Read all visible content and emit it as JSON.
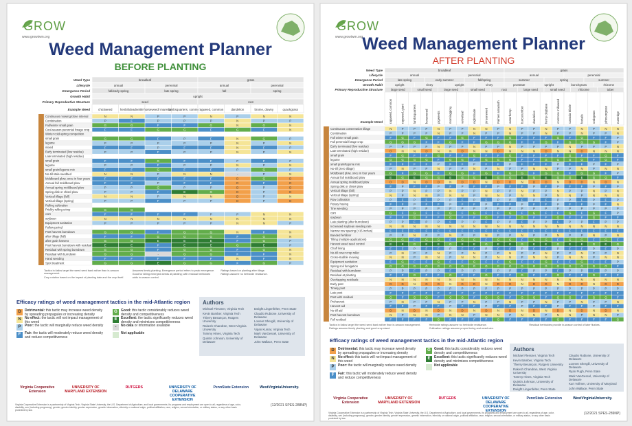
{
  "posters": [
    {
      "logo": "GROW",
      "website": "www.growiwm.org",
      "title": "Weed Management Planner",
      "subtitle": "BEFORE PLANTING",
      "subtitle_color": "#3f8f3a",
      "grid": {
        "header": [
          {
            "label": "Weed Type",
            "groups": [
              "broadleaf",
              "grass"
            ]
          },
          {
            "label": "Lifecycle",
            "groups": [
              "annual",
              "perennial",
              "annual",
              "perennial"
            ]
          },
          {
            "label": "Emergence Period",
            "groups": [
              "fall/early spring",
              "late spring",
              "fall",
              "spring"
            ]
          },
          {
            "label": "Growth Habit",
            "groups": [
              "upright"
            ]
          },
          {
            "label": "Primary Reproductive Structure",
            "groups": [
              "seed",
              "root"
            ]
          }
        ],
        "example_label": "Example Weed",
        "columns": [
          "chickweed",
          "henbit/deadnettle",
          "horseweed/ marestail",
          "lambsquarters, common",
          "ragweed, common",
          "dandelion",
          "brome, downy",
          "quackgrass"
        ],
        "row_labels": [
          "Continuous mowing/close interval",
          "Combination",
          "Fall/winter small grain",
          "Cool-season perennial forage crop",
          "Winter cold-spring competition",
          "small grain",
          "legume",
          "mixed",
          "Early terminated (low residue)",
          "Late terminated (high residue)",
          "small grain",
          "legume",
          "small grain/legume mix",
          "No-till stale seedbed",
          "Moldboard plow, once in four years",
          "Annual fall moldboard plow",
          "Annual spring moldboard plow",
          "Spring disk or chisel plow",
          "Vertical tillage (fall)",
          "Vertical tillage (spring)",
          "Rolling cultivation",
          "Prickly-rolling crimp",
          "corn",
          "soybean",
          "Equipment sanitation",
          "Fallow period",
          "Post harvest burndown",
          "after tillage (fall)",
          "after grain harvest",
          "Post harvest burndown with residual",
          "Residual with spring burndown",
          "Residual with burndown",
          "Hand weeding",
          "Spot treatment"
        ],
        "rows": [
          "NNPPNPNN",
          "PFPPPNPP",
          "GGFFGNGN",
          "FFGGFGFN",
          "        ",
          "GGFPFNGP",
          "PPPPPNPN",
          "FFPFFNFP",
          "PPFPPNPN",
          "        ",
          "FFGFFPFP",
          "PPFPPNPN",
          "FFGFFPGP",
          "NNPNN-PN",
          "FFFFFDGD",
          "FFPFFDFD",
          "PPGPPDPD",
          "PPFEGDPD",
          "NNPNNDPN",
          "PPFPPDPD",
          "        ",
          "GG      ",
          "FFFFPPNN",
          "NNNNNNNN",
          "PPPPPNNP",
          "        ",
          "GGFGGNFN",
          "FFGGGFGN",
          "GGEEEFGP",
          "EEFEEGEP",
          "GGFGGFGN",
          "GG-GGFFN",
          "FFFFFNFN",
          "GGEGGFGP"
        ]
      },
      "notes": [
        "Tactics in italics target the weed seed bank rather than in-season management.",
        "Crop rotation based on the impact of planting date and the crop itself.",
        "Assumes timely planting. Emergence period refers to peak emergence.",
        "Good for killing emerged weeds at planting; with residual herbicides adds in-season control.",
        "Ratings based on planting after tillage.",
        "Ratings assume no herbicide resistance."
      ],
      "efficacy_title": "Efficacy ratings of weed management tactics in the mid-Atlantic region",
      "legend": [
        {
          "code": "D",
          "color": "#f2a04a",
          "label": "Detrimental:",
          "text": "this tactic may increase weed density by spreading propagules or increasing density"
        },
        {
          "code": "N",
          "color": "#f5e597",
          "label": "No effect:",
          "text": "the tactic will not impact management of this weed"
        },
        {
          "code": "P",
          "color": "#aacfea",
          "label": "Poor:",
          "text": "the tactic will marginally reduce weed density"
        },
        {
          "code": "F",
          "color": "#4b8fc8",
          "label": "Fair:",
          "text": "the tactic will moderately reduce weed density and reduce competitiveness"
        },
        {
          "code": "G",
          "color": "#62ad4b",
          "label": "Good:",
          "text": "this tactic considerably reduces weed density and competitiveness"
        },
        {
          "code": "E",
          "color": "#2f7d34",
          "label": "Excellent:",
          "text": "the tactic significantly reduces weed density and minimizes competitiveness"
        },
        {
          "code": "-",
          "color": "#d9d9d9",
          "label": "No data",
          "text": "or information available"
        },
        {
          "color": "#d6ead0",
          "label": "Not applicable"
        }
      ],
      "authors_title": "Authors",
      "authors": [
        "Michael Flessner, Virginia Tech",
        "Kevin Bamber, Virginia Tech",
        "Thierry Besançon, Rutgers University",
        "Rakesh Chandran, West Virginia University",
        "Tommy Hines, Virginia Tech",
        "Quintin Johnson, University of Delaware",
        "Dwight Lingenfelter, Penn State",
        "Claudio Rubione, University of Delaware",
        "Lovreet Shergill, University of Delaware",
        "Vipan Kumar, Virginia Tech",
        "Mark VanGessel, University of Delaware",
        "John Wallace, Penn State"
      ],
      "logos": [
        "Virginia Cooperative Extension",
        "UNIVERSITY OF MARYLAND EXTENSION",
        "RUTGERS",
        "UNIVERSITY OF DELAWARE COOPERATIVE EXTENSION",
        "PennState Extension",
        "WestVirginiaUniversity."
      ],
      "footer": "Virginia Cooperative Extension is a partnership of Virginia Tech, Virginia State University, the U.S. Department of Agriculture, and local governments. Its programs and employment are open to all, regardless of age, color, disability, sex (including pregnancy), gender, gender identity, gender expression, genetic information, ethnicity or national origin, political affiliation, race, religion, sexual orientation, or military status, or any other basis protected by law.",
      "code": "(12/2021 SPES-288NP)"
    },
    {
      "logo": "GROW",
      "website": "www.growiwm.org",
      "title": "Weed Management Planner",
      "subtitle": "AFTER PLANTING",
      "subtitle_color": "#d23a2a",
      "grid": {
        "header": [
          {
            "label": "Weed Type",
            "groups": [
              "broadleaf",
              "grass"
            ]
          },
          {
            "label": "Lifecycle",
            "groups": [
              "annual",
              "perennial",
              "annual",
              "perennial"
            ]
          },
          {
            "label": "Emergence Period",
            "groups": [
              "late spring",
              "early summer",
              "fall/spring",
              "summer",
              "spring",
              "summer"
            ]
          },
          {
            "label": "Growth Habit",
            "groups": [
              "upright",
              "viney",
              "upright",
              "viney",
              "prostrate",
              "upright",
              "bunchgrass",
              "rhizome"
            ]
          },
          {
            "label": "Primary Reproductive Structure",
            "groups": [
              "large seed",
              "small seed",
              "large seed",
              "small seed",
              "root",
              "large seed",
              "small seed",
              "rhizome",
              "tuber"
            ]
          }
        ],
        "example_label": "Example Weed",
        "columns": [
          "ragweed, common",
          "ragweed, giant",
          "lambsquarters",
          "horseweed",
          "pigweeds",
          "morningglory",
          "velvetleaf",
          "nightshade",
          "jimsonweed",
          "Palmer amaranth",
          "waterhemp",
          "burcucumber",
          "dandelion",
          "hemp dogbane",
          "common milkweed",
          "Canada thistle",
          "foxtails",
          "crabgrass",
          "johnsongrass",
          "nutsedge"
        ],
        "row_labels": [
          "Continuous conservation tillage",
          "Combination",
          "Fall winter small grain",
          "Fall perennial forage crop",
          "Early terminated (low residue)",
          "Late terminated (high residue)",
          "small grain",
          "legume",
          "small grain/legume mix",
          "No-till (zero tillage)",
          "Moldboard plow, once in four years",
          "Annual fall moldboard plow",
          "Annual spring moldboard plow",
          "Spring disk or chisel plow",
          "Vertical tillage (fall)",
          "Vertical tillage (spring)",
          "Row cultivation",
          "Rotary hoeing",
          "Tine weeding",
          "corn",
          "soybean",
          "Late planting (after burndown)",
          "Increased soybean seeding rate",
          "Narrow row spacing (<15 inches)",
          "Banded fertilizer",
          "Tilling (multiple applications)",
          "Harvest weed seed control",
          "Chaff lining",
          "No-till cover crop roller",
          "Cross-stubble mowing",
          "Equipment sanitation",
          "Spring soil fumigation",
          "Residual with burndown",
          "Residual at planting",
          "Overlapping residuals",
          "Early post",
          "Timely post",
          "Late post",
          "Post with residual",
          "Preharvest",
          "Harvest aid",
          "No-till aid",
          "Post harvest burndown",
          "Fall residual"
        ],
        "rows": [
          "NPPPNPPNNPNPPNPPNPNN",
          "PPPPNPPNPPNPPNPPNPPN",
          "FGFGFFGFFFGFFFGFGFFP",
          "GGGFFGFFGGGFFGFGGGFP",
          "PPPPNPPNPPNPPPPNPPPN",
          "DNNDNNDNNDNNNDNNDNNN",
          "FGFFGFFGFFGFFFFGFFGF",
          "GGGGFGGFGGGFFGGGGFGF",
          "FFFFPFFPFFPFFFPFFPFP",
          "PNPPNPPNPNPPNNPPNPNN",
          "GFGGFGGFGFGGFGGFGGFP",
          "EGEGGEGGEGGEGEGGEGGF",
          "DDNDDNDDNDDNDDNDDNDN",
          "FPFFPFPFFPFFPFPFFPFP",
          "PPNPPNPPNPPNPPNPPNPN",
          "NPNNPNNPNNPNNPNNPNNN",
          "PFPFPPFPFPPFPFPPFPFP",
          "FFPFFPFFPFFPFFPFFPFN",
          "PPPPPPPPPPPPPPPPPPPP",
          "GFGFFGFGFFGFGFFGFGFP",
          "FFGFFGFFGFFGFFGFFGFF",
          "PPFPPFPPFPPFPPFPPFPP",
          "NNNNNNNNNNNNNNNNNNNN",
          "FFFFFFFFFFFFFFFFFFFF",
          "PPNPPNPPNPPNPPNPPNPN",
          "GGFGGFGGFGGFGGFGGFGF",
          "EEGEEGEEGEEGEEGEEGEG",
          "FFPFFPFFPFFPFFPFFPFP",
          "PNPPNPPNPPNPPNPPNPPN",
          "NNPNNPNNPNNPNNPNNPNN",
          "FGFFGFFGFFGFFGFFGFFP",
          "GGGGGGGGGGGGGGGGGGGF",
          "PPFPPFPPFPPFPPFPPFPP",
          "FFGFFGFFGFFGFFGFFGFF",
          "NNNNNNNNNNNNNNNNNNNN",
          "DDNDDNDDNDDNDDNDDNDD",
          "PPPPPPPPPPPPPPPPPPPP",
          "FFFFFFFFFFFFFFFFFFFF",
          "GFGGFGGFGGFGGFGGFGGF",
          "PNPPNPPNPPNPPNPPNPPN",
          "FFPFFPFFPFFPFFPFFPFF",
          "DNDNDNDNDNDNDNDNDNDN",
          "NPNNPNNPNNPNNPNNPNNP",
          "FFFFGFFFFGFFFFGFFFFG"
        ]
      },
      "notes": [
        "Tactics in italics target the weed seed bank rather than in-season management.",
        "Ratings assume timely planting and good crop stand.",
        "Herbicide ratings assume no herbicide resistance.",
        "Cultivation ratings assume proper timing and weed size.",
        "Residual herbicides provide in-season control of later flushes."
      ],
      "efficacy_title": "Efficacy ratings of weed management tactics in the mid-Atlantic region",
      "legend": [
        {
          "code": "D",
          "color": "#f2a04a",
          "label": "Detrimental:",
          "text": "this tactic may increase weed density by spreading propagules or increasing density"
        },
        {
          "code": "N",
          "color": "#f5e597",
          "label": "No effect:",
          "text": "this tactic will not impact management of this weed"
        },
        {
          "code": "P",
          "color": "#aacfea",
          "label": "Poor:",
          "text": "the tactic will marginally reduce weed density"
        },
        {
          "code": "F",
          "color": "#4b8fc8",
          "label": "Fair:",
          "text": "this tactic will moderately reduce weed density and reduce competitiveness"
        },
        {
          "code": "G",
          "color": "#62ad4b",
          "label": "Good:",
          "text": "this tactic considerably reduces weed density and competitiveness"
        },
        {
          "code": "E",
          "color": "#2f7d34",
          "label": "Excellent:",
          "text": "this tactic significantly reduces weed density and minimizes competitiveness"
        },
        {
          "color": "#d6ead0",
          "label": "Not applicable"
        }
      ],
      "authors_title": "Authors",
      "authors": [
        "Michael Flessner, Virginia Tech",
        "Kevin Bamber, Virginia Tech",
        "Thierry Besançon, Rutgers University",
        "Rakesh Chandran, West Virginia University",
        "Tommy Hines, Virginia Tech",
        "Quintin Johnson, University of Delaware",
        "Dwight Lingenfelter, Penn State",
        "Claudio Rubione, University of Delaware",
        "Lovreet Shergill, University of Delaware",
        "Ryan Pugh, Penn State",
        "Mark VanGessel, University of Delaware",
        "Kurt Vollmer, University of Maryland",
        "John Wallace, Penn State"
      ],
      "logos": [
        "Virginia Cooperative Extension",
        "UNIVERSITY OF MARYLAND EXTENSION",
        "RUTGERS",
        "UNIVERSITY OF DELAWARE COOPERATIVE EXTENSION",
        "PennState Extension",
        "WestVirginiaUniversity."
      ],
      "footer": "Virginia Cooperative Extension is a partnership of Virginia Tech, Virginia State University, the U.S. Department of Agriculture, and local governments. Its programs and employment are open to all, regardless of age, color, disability, sex (including pregnancy), gender, gender identity, gender expression, genetic information, ethnicity or national origin, political affiliation, race, religion, sexual orientation, or military status, or any other basis protected by law.",
      "code": "(12/2021 SPES-289NP)"
    }
  ]
}
